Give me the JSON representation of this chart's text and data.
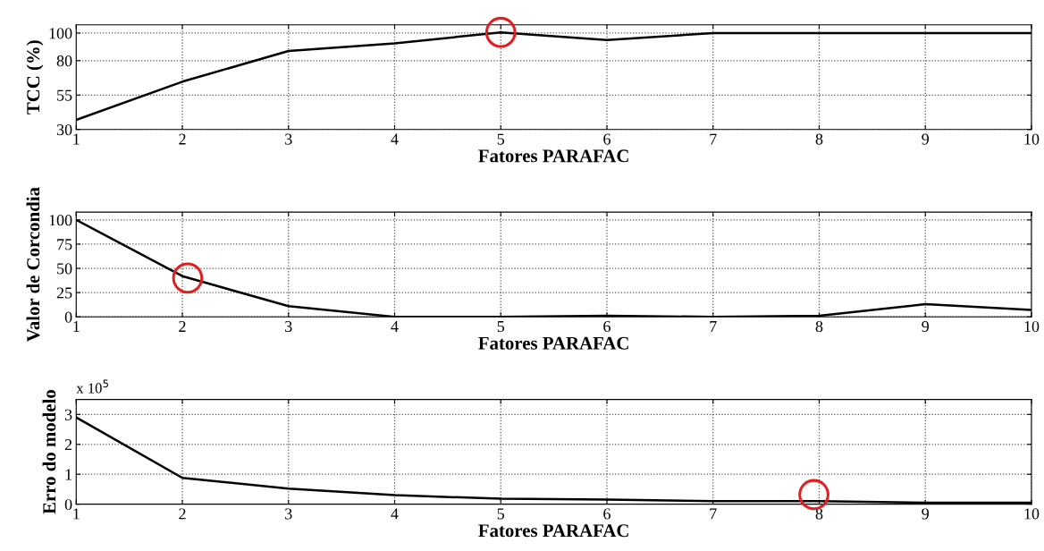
{
  "chart_data": [
    {
      "type": "line",
      "ylabel": "TCC (%)",
      "xlabel": "Fatores PARAFAC",
      "x": [
        1,
        2,
        3,
        4,
        5,
        6,
        7,
        8,
        9,
        10
      ],
      "series": [
        {
          "color": "#000000",
          "values": [
            37,
            64.7,
            87,
            92.5,
            100.5,
            95,
            100,
            100,
            100,
            100
          ]
        },
        {
          "type": "scatter",
          "color": "#e02020",
          "x": [
            5
          ],
          "values": [
            100.5
          ]
        }
      ],
      "xlim": [
        1,
        10
      ],
      "xticks": [
        1,
        2,
        3,
        4,
        5,
        6,
        7,
        8,
        9,
        10
      ],
      "ylim": [
        30,
        106
      ],
      "yticks": [
        30,
        55,
        80,
        100
      ],
      "grid": true
    },
    {
      "type": "line",
      "ylabel": "Valor de Corcondia",
      "xlabel": "Fatores PARAFAC",
      "x": [
        1,
        2,
        3,
        4,
        5,
        6,
        7,
        8,
        9,
        10
      ],
      "series": [
        {
          "color": "#000000",
          "values": [
            100,
            42,
            11,
            0,
            0,
            1,
            0,
            1,
            13,
            7
          ]
        },
        {
          "type": "scatter",
          "color": "#e02020",
          "x": [
            2.05
          ],
          "values": [
            40
          ]
        }
      ],
      "xlim": [
        1,
        10
      ],
      "xticks": [
        1,
        2,
        3,
        4,
        5,
        6,
        7,
        8,
        9,
        10
      ],
      "ylim": [
        0,
        108
      ],
      "yticks": [
        0,
        25,
        50,
        75,
        100
      ],
      "grid": true
    },
    {
      "type": "line",
      "ylabel": "Erro do modelo",
      "xlabel": "Fatores PARAFAC",
      "annotations": [
        "x 10$^{5}$"
      ],
      "x": [
        1,
        2,
        3,
        4,
        5,
        6,
        7,
        8,
        9,
        10
      ],
      "series": [
        {
          "color": "#000000",
          "values": [
            2.9,
            0.88,
            0.52,
            0.3,
            0.18,
            0.15,
            0.1,
            0.1,
            0.05,
            0.05
          ]
        },
        {
          "type": "scatter",
          "color": "#e02020",
          "x": [
            7.95
          ],
          "values": [
            0.32
          ]
        }
      ],
      "xlim": [
        1,
        10
      ],
      "xticks": [
        1,
        2,
        3,
        4,
        5,
        6,
        7,
        8,
        9,
        10
      ],
      "ylim": [
        0,
        3.5
      ],
      "yticks": [
        0,
        1,
        2,
        3
      ],
      "grid": true
    }
  ]
}
